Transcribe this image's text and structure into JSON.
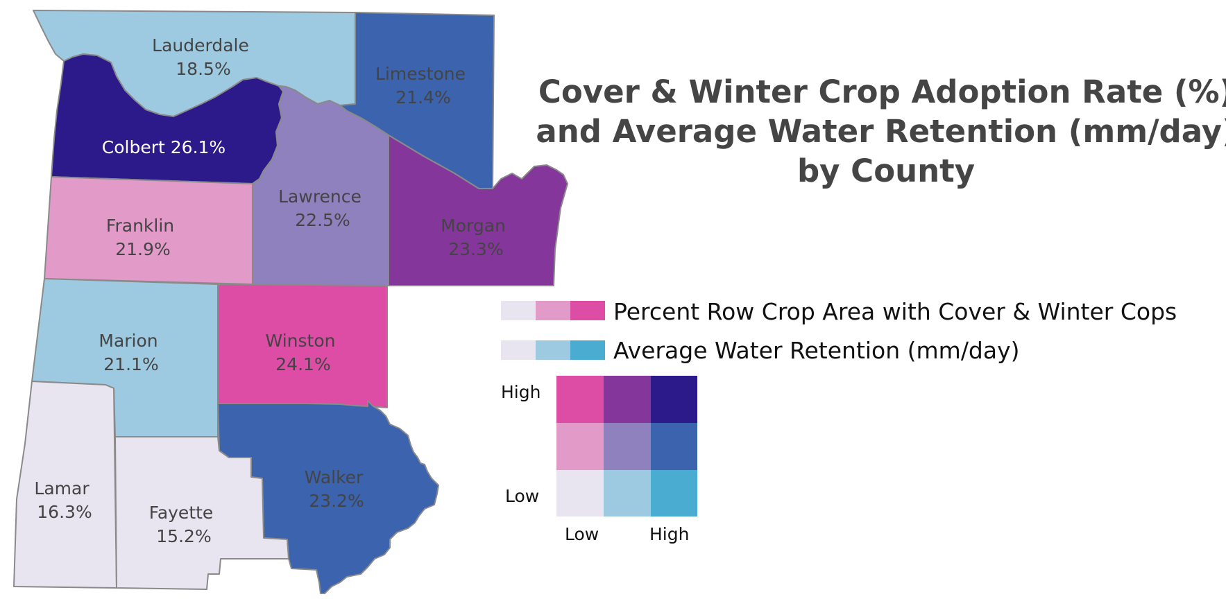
{
  "title": {
    "lines": [
      "Cover & Winter Crop Adoption Rate (%)",
      "and Average Water Retention (mm/day)",
      "by County"
    ]
  },
  "colors": {
    "ll": "#e8e4f0",
    "lm": "#9ecae1",
    "lh": "#4bacd1",
    "ml": "#e29ac9",
    "mm": "#8e81bd",
    "mh": "#3c63ad",
    "hl": "#dd4ca5",
    "hm": "#84369a",
    "hh": "#2c1a8a",
    "border": "#8a8a8a"
  },
  "counties": [
    {
      "id": "lauderdale",
      "name": "Lauderdale",
      "value": "18.5%",
      "bivariate": "lm",
      "label": [
        "Lauderdale",
        "18.5%"
      ]
    },
    {
      "id": "limestone",
      "name": "Limestone",
      "value": "21.4%",
      "bivariate": "mh",
      "label": [
        "Limestone",
        "21.4%"
      ]
    },
    {
      "id": "colbert",
      "name": "Colbert",
      "value": "26.1%",
      "bivariate": "hh",
      "label": [
        "Colbert 26.1%"
      ]
    },
    {
      "id": "franklin",
      "name": "Franklin",
      "value": "21.9%",
      "bivariate": "ml",
      "label": [
        "Franklin",
        "21.9%"
      ]
    },
    {
      "id": "lawrence",
      "name": "Lawrence",
      "value": "22.5%",
      "bivariate": "mm",
      "label": [
        "Lawrence",
        "22.5%"
      ]
    },
    {
      "id": "morgan",
      "name": "Morgan",
      "value": "23.3%",
      "bivariate": "hm",
      "label": [
        "Morgan",
        "23.3%"
      ]
    },
    {
      "id": "marion",
      "name": "Marion",
      "value": "21.1%",
      "bivariate": "lm",
      "label": [
        "Marion",
        "21.1%"
      ]
    },
    {
      "id": "winston",
      "name": "Winston",
      "value": "24.1%",
      "bivariate": "hl",
      "label": [
        "Winston",
        "24.1%"
      ]
    },
    {
      "id": "walker",
      "name": "Walker",
      "value": "23.2%",
      "bivariate": "mh",
      "label": [
        "Walker",
        "23.2%"
      ]
    },
    {
      "id": "lamar",
      "name": "Lamar",
      "value": "16.3%",
      "bivariate": "ll",
      "label": [
        "Lamar",
        "16.3%"
      ]
    },
    {
      "id": "fayette",
      "name": "Fayette",
      "value": "15.2%",
      "bivariate": "ll",
      "label": [
        "Fayette",
        "15.2%"
      ]
    }
  ],
  "legend": {
    "crop_label": "Percent Row Crop Area with Cover & Winter Cops",
    "water_label": "Average Water Retention (mm/day)",
    "y_high": "High",
    "y_low": "Low",
    "x_low": "Low",
    "x_high": "High"
  }
}
